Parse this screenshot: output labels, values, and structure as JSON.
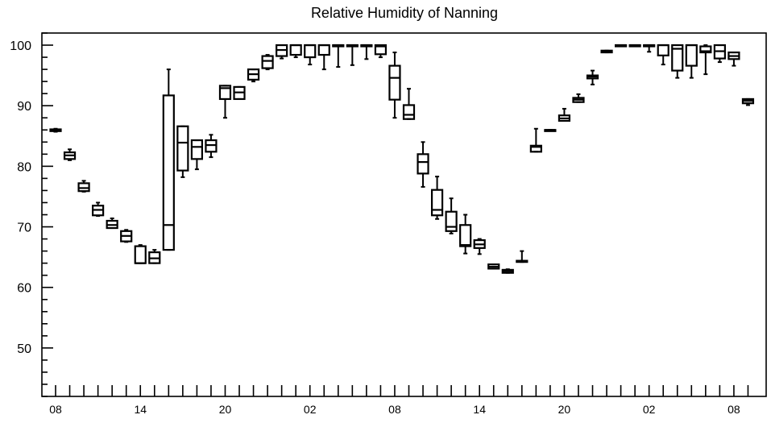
{
  "chart_data": {
    "type": "boxplot",
    "title": "Relative Humidity of Nanning",
    "xlabel": "",
    "ylabel": "",
    "ylim": [
      42,
      102
    ],
    "y_ticks": [
      50,
      60,
      70,
      80,
      90,
      100
    ],
    "x_tick_labels": [
      {
        "index": 0,
        "label": "08"
      },
      {
        "index": 6,
        "label": "14"
      },
      {
        "index": 12,
        "label": "20"
      },
      {
        "index": 18,
        "label": "02"
      },
      {
        "index": 24,
        "label": "08"
      },
      {
        "index": 30,
        "label": "14"
      },
      {
        "index": 36,
        "label": "20"
      },
      {
        "index": 42,
        "label": "02"
      },
      {
        "index": 48,
        "label": "08"
      }
    ],
    "series": [
      {
        "x": 0,
        "min": 85.7,
        "q1": 85.8,
        "median": 86.0,
        "q3": 86.1,
        "max": 86.2
      },
      {
        "x": 1,
        "min": 81.0,
        "q1": 81.2,
        "median": 81.8,
        "q3": 82.3,
        "max": 82.8
      },
      {
        "x": 2,
        "min": 75.8,
        "q1": 75.9,
        "median": 76.4,
        "q3": 77.2,
        "max": 77.6
      },
      {
        "x": 3,
        "min": 71.8,
        "q1": 71.9,
        "median": 72.8,
        "q3": 73.5,
        "max": 74.0
      },
      {
        "x": 4,
        "min": 69.8,
        "q1": 69.8,
        "median": 70.3,
        "q3": 71.0,
        "max": 71.4
      },
      {
        "x": 5,
        "min": 67.5,
        "q1": 67.6,
        "median": 68.5,
        "q3": 69.3,
        "max": 69.5
      },
      {
        "x": 6,
        "min": 64.0,
        "q1": 64.0,
        "median": 64.0,
        "q3": 66.8,
        "max": 67.0
      },
      {
        "x": 7,
        "min": 64.0,
        "q1": 64.0,
        "median": 64.8,
        "q3": 65.8,
        "max": 66.2
      },
      {
        "x": 8,
        "min": 66.2,
        "q1": 66.2,
        "median": 70.3,
        "q3": 91.7,
        "max": 96.0
      },
      {
        "x": 9,
        "min": 78.2,
        "q1": 79.3,
        "median": 83.9,
        "q3": 86.6,
        "max": 86.6
      },
      {
        "x": 10,
        "min": 79.5,
        "q1": 81.2,
        "median": 83.2,
        "q3": 84.3,
        "max": 84.3
      },
      {
        "x": 11,
        "min": 81.5,
        "q1": 82.4,
        "median": 83.5,
        "q3": 84.3,
        "max": 85.2
      },
      {
        "x": 12,
        "min": 88.0,
        "q1": 91.1,
        "median": 92.9,
        "q3": 93.3,
        "max": 93.3
      },
      {
        "x": 13,
        "min": 91.1,
        "q1": 91.1,
        "median": 92.2,
        "q3": 93.1,
        "max": 93.1
      },
      {
        "x": 14,
        "min": 94.0,
        "q1": 94.3,
        "median": 95.2,
        "q3": 96.0,
        "max": 96.0
      },
      {
        "x": 15,
        "min": 96.0,
        "q1": 96.2,
        "median": 97.4,
        "q3": 98.2,
        "max": 98.4
      },
      {
        "x": 16,
        "min": 97.8,
        "q1": 98.2,
        "median": 99.2,
        "q3": 100.0,
        "max": 100.0
      },
      {
        "x": 17,
        "min": 98.0,
        "q1": 98.4,
        "median": 100.0,
        "q3": 100.0,
        "max": 100.0
      },
      {
        "x": 18,
        "min": 96.8,
        "q1": 98.0,
        "median": 100.0,
        "q3": 100.0,
        "max": 100.0
      },
      {
        "x": 19,
        "min": 96.0,
        "q1": 98.4,
        "median": 100.0,
        "q3": 100.0,
        "max": 100.0
      },
      {
        "x": 20,
        "min": 96.4,
        "q1": 100.0,
        "median": 100.0,
        "q3": 100.0,
        "max": 100.0
      },
      {
        "x": 21,
        "min": 96.7,
        "q1": 100.0,
        "median": 100.0,
        "q3": 100.0,
        "max": 100.0
      },
      {
        "x": 22,
        "min": 97.7,
        "q1": 100.0,
        "median": 100.0,
        "q3": 100.0,
        "max": 100.0
      },
      {
        "x": 23,
        "min": 98.0,
        "q1": 98.5,
        "median": 99.8,
        "q3": 100.0,
        "max": 100.0
      },
      {
        "x": 24,
        "min": 88.0,
        "q1": 91.0,
        "median": 94.6,
        "q3": 96.6,
        "max": 98.8
      },
      {
        "x": 25,
        "min": 87.8,
        "q1": 87.8,
        "median": 88.5,
        "q3": 90.1,
        "max": 92.8
      },
      {
        "x": 26,
        "min": 76.6,
        "q1": 78.8,
        "median": 80.7,
        "q3": 82.0,
        "max": 84.0
      },
      {
        "x": 27,
        "min": 71.3,
        "q1": 71.9,
        "median": 72.8,
        "q3": 76.1,
        "max": 78.3
      },
      {
        "x": 28,
        "min": 68.9,
        "q1": 69.3,
        "median": 70.0,
        "q3": 72.5,
        "max": 74.7
      },
      {
        "x": 29,
        "min": 65.6,
        "q1": 66.8,
        "median": 67.0,
        "q3": 70.3,
        "max": 72.0
      },
      {
        "x": 30,
        "min": 65.5,
        "q1": 66.5,
        "median": 67.1,
        "q3": 67.8,
        "max": 68.0
      },
      {
        "x": 31,
        "min": 63.1,
        "q1": 63.1,
        "median": 63.4,
        "q3": 63.8,
        "max": 63.8
      },
      {
        "x": 32,
        "min": 62.4,
        "q1": 62.4,
        "median": 62.6,
        "q3": 62.9,
        "max": 63.0
      },
      {
        "x": 33,
        "min": 64.2,
        "q1": 64.2,
        "median": 64.3,
        "q3": 64.4,
        "max": 66.0
      },
      {
        "x": 34,
        "min": 82.4,
        "q1": 82.4,
        "median": 83.2,
        "q3": 83.4,
        "max": 86.2
      },
      {
        "x": 35,
        "min": 86.0,
        "q1": 86.0,
        "median": 86.0,
        "q3": 86.0,
        "max": 86.0
      },
      {
        "x": 36,
        "min": 87.5,
        "q1": 87.5,
        "median": 87.9,
        "q3": 88.4,
        "max": 89.5
      },
      {
        "x": 37,
        "min": 90.6,
        "q1": 90.6,
        "median": 91.0,
        "q3": 91.3,
        "max": 91.9
      },
      {
        "x": 38,
        "min": 93.5,
        "q1": 94.5,
        "median": 94.8,
        "q3": 95.0,
        "max": 95.8
      },
      {
        "x": 39,
        "min": 98.8,
        "q1": 98.8,
        "median": 99.0,
        "q3": 99.1,
        "max": 99.1
      },
      {
        "x": 40,
        "min": 100.0,
        "q1": 100.0,
        "median": 100.0,
        "q3": 100.0,
        "max": 100.0
      },
      {
        "x": 41,
        "min": 100.0,
        "q1": 100.0,
        "median": 100.0,
        "q3": 100.0,
        "max": 100.0
      },
      {
        "x": 42,
        "min": 98.9,
        "q1": 100.0,
        "median": 100.0,
        "q3": 100.0,
        "max": 100.0
      },
      {
        "x": 43,
        "min": 96.8,
        "q1": 98.3,
        "median": 100.0,
        "q3": 100.0,
        "max": 100.0
      },
      {
        "x": 44,
        "min": 94.6,
        "q1": 95.8,
        "median": 99.4,
        "q3": 100.0,
        "max": 100.0
      },
      {
        "x": 45,
        "min": 94.6,
        "q1": 96.6,
        "median": 100.0,
        "q3": 100.0,
        "max": 100.0
      },
      {
        "x": 46,
        "min": 95.2,
        "q1": 98.8,
        "median": 99.0,
        "q3": 99.8,
        "max": 100.0
      },
      {
        "x": 47,
        "min": 97.2,
        "q1": 97.8,
        "median": 99.0,
        "q3": 100.0,
        "max": 100.0
      },
      {
        "x": 48,
        "min": 96.6,
        "q1": 97.7,
        "median": 98.2,
        "q3": 98.8,
        "max": 98.8
      },
      {
        "x": 49,
        "min": 90.1,
        "q1": 90.4,
        "median": 90.8,
        "q3": 91.1,
        "max": 91.1
      }
    ]
  }
}
